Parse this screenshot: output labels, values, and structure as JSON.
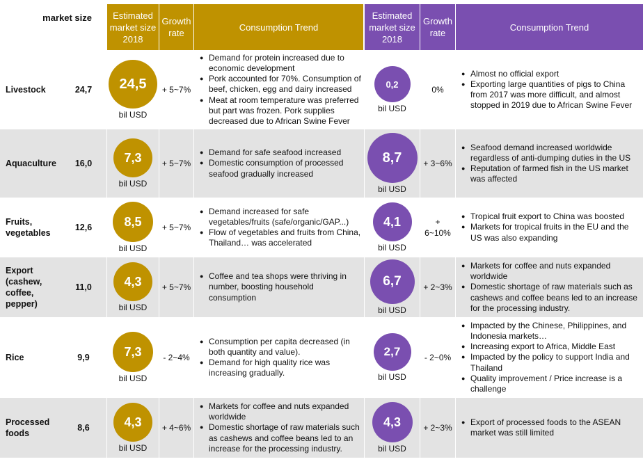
{
  "header": {
    "market_size_label": "market size",
    "left": {
      "estimated": "Estimated market size 2018",
      "growth": "Growth rate",
      "trend": "Consumption Trend"
    },
    "right": {
      "estimated": "Estimated market size 2018",
      "growth": "Growth rate",
      "trend": "Consumption Trend"
    }
  },
  "unit": "bil USD",
  "colors": {
    "gold": "#bf9200",
    "purple": "#7a4fb0",
    "row_shade": "#e3e3e3"
  },
  "rows": [
    {
      "name": "Livestock",
      "market_size": "24,7",
      "left_value": "24,5",
      "left_growth": "+ 5~7%",
      "left_trend": [
        "Demand for protein increased due to economic development",
        "Pork accounted for 70%. Consumption of beef, chicken, egg and dairy increased",
        "Meat at room temperature was preferred but part was frozen. Pork supplies decreased due to African Swine Fever"
      ],
      "right_value": "0,2",
      "right_growth": "0%",
      "right_trend": [
        "Almost no official export",
        "Exporting large quantities of pigs to China from 2017 was more difficult, and almost stopped in 2019 due to African Swine Fever"
      ]
    },
    {
      "name": "Aquaculture",
      "market_size": "16,0",
      "left_value": "7,3",
      "left_growth": "+ 5~7%",
      "left_trend": [
        "Demand for safe seafood increased",
        "Domestic consumption of processed seafood gradually increased"
      ],
      "right_value": "8,7",
      "right_growth": "+ 3~6%",
      "right_trend": [
        "Seafood demand increased worldwide regardless of anti-dumping duties in the US",
        "Reputation of farmed fish in the US market was affected"
      ]
    },
    {
      "name": "Fruits, vegetables",
      "market_size": "12,6",
      "left_value": "8,5",
      "left_growth": "+ 5~7%",
      "left_trend": [
        "Demand increased for safe vegetables/fruits (safe/organic/GAP...)",
        "Flow of vegetables and fruits from China, Thailand… was accelerated"
      ],
      "right_value": "4,1",
      "right_growth": "+ 6~10%",
      "right_trend": [
        "Tropical fruit export to China was boosted",
        "Markets for tropical fruits in the EU and the US was also expanding"
      ]
    },
    {
      "name": "Export (cashew, coffee, pepper)",
      "market_size": "11,0",
      "left_value": "4,3",
      "left_growth": "+ 5~7%",
      "left_trend": [
        "Coffee and tea shops were thriving in number, boosting household consumption"
      ],
      "right_value": "6,7",
      "right_growth": "+ 2~3%",
      "right_trend": [
        "Markets for coffee and nuts expanded worldwide",
        "Domestic shortage of raw materials such as cashews and coffee beans led to an increase for the processing industry."
      ]
    },
    {
      "name": "Rice",
      "market_size": "9,9",
      "left_value": "7,3",
      "left_growth": "- 2~4%",
      "left_trend": [
        "Consumption per capita decreased (in both quantity and value).",
        "Demand for high quality rice was increasing gradually."
      ],
      "right_value": "2,7",
      "right_growth": "- 2~0%",
      "right_trend": [
        "Impacted by the Chinese, Philippines, and Indonesia markets…",
        "Increasing export to Africa, Middle East",
        "Impacted by the policy to support India and Thailand",
        "Quality improvement / Price increase is a challenge"
      ]
    },
    {
      "name": "Processed foods",
      "market_size": "8,6",
      "left_value": "4,3",
      "left_growth": "+ 4~6%",
      "left_trend": [
        "Markets for coffee and nuts expanded worldwide",
        "Domestic shortage of raw materials such as cashews and coffee beans led to an increase for the processing industry."
      ],
      "right_value": "4,3",
      "right_growth": "+ 2~3%",
      "right_trend": [
        "Export of processed foods to the ASEAN market was still limited"
      ]
    }
  ]
}
